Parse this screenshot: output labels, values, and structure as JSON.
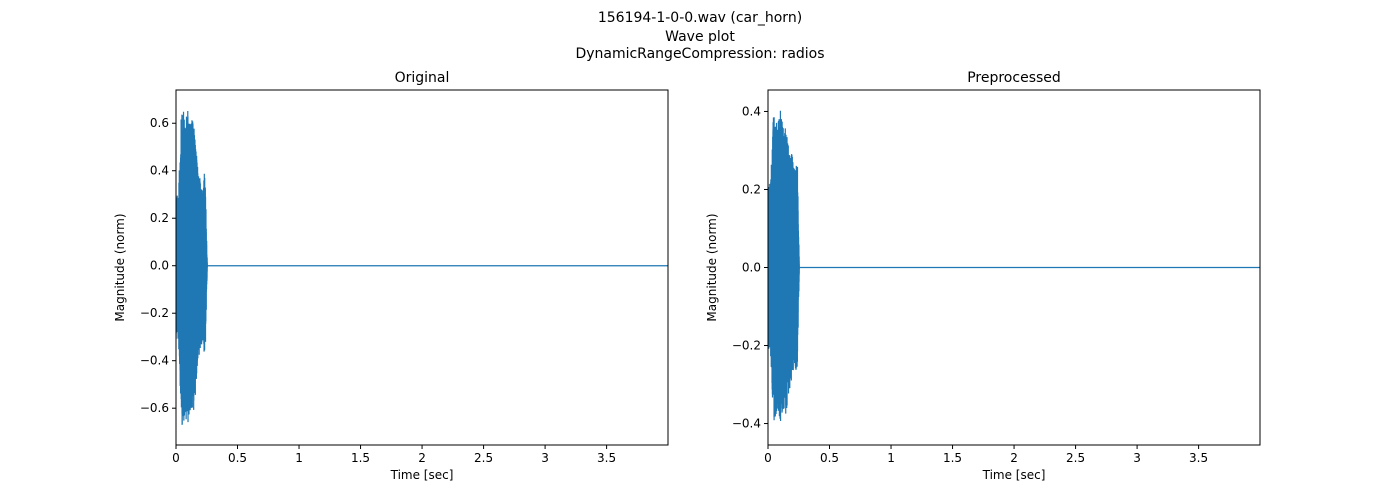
{
  "figure": {
    "suptitle_lines": [
      "156194-1-0-0.wav (car_horn)",
      "Wave plot",
      "DynamicRangeCompression: radios"
    ]
  },
  "colors": {
    "series": "#1f77b4",
    "axes": "#000000",
    "background": "#ffffff"
  },
  "chart_data": [
    {
      "type": "line",
      "title": "Original",
      "xlabel": "Time [sec]",
      "ylabel": "Magnitude (norm)",
      "xlim": [
        0,
        3.999
      ],
      "ylim": [
        -0.755,
        0.74
      ],
      "xticks": [
        0,
        0.5,
        1,
        1.5,
        2,
        2.5,
        3,
        3.5
      ],
      "xtick_labels": [
        "0",
        "0.5",
        "1",
        "1.5",
        "2",
        "2.5",
        "3",
        "3.5"
      ],
      "yticks": [
        -0.6,
        -0.4,
        -0.2,
        0.0,
        0.2,
        0.4,
        0.6
      ],
      "ytick_labels": [
        "−0.6",
        "−0.4",
        "−0.2",
        "0.0",
        "0.2",
        "0.4",
        "0.6"
      ],
      "grid": false,
      "signal": {
        "burst_start_sec": 0.0,
        "burst_end_sec": 0.255,
        "envelope_points": [
          [
            0.0,
            0.31
          ],
          [
            0.01,
            0.3
          ],
          [
            0.02,
            0.33
          ],
          [
            0.03,
            0.44
          ],
          [
            0.04,
            0.62
          ],
          [
            0.05,
            0.68
          ],
          [
            0.06,
            0.66
          ],
          [
            0.07,
            0.65
          ],
          [
            0.08,
            0.66
          ],
          [
            0.09,
            0.62
          ],
          [
            0.1,
            0.68
          ],
          [
            0.11,
            0.65
          ],
          [
            0.12,
            0.6
          ],
          [
            0.13,
            0.63
          ],
          [
            0.14,
            0.62
          ],
          [
            0.15,
            0.61
          ],
          [
            0.16,
            0.52
          ],
          [
            0.17,
            0.45
          ],
          [
            0.18,
            0.4
          ],
          [
            0.19,
            0.38
          ],
          [
            0.2,
            0.37
          ],
          [
            0.21,
            0.34
          ],
          [
            0.22,
            0.34
          ],
          [
            0.23,
            0.4
          ],
          [
            0.24,
            0.33
          ],
          [
            0.255,
            0.0
          ],
          [
            3.999,
            0.0
          ]
        ]
      }
    },
    {
      "type": "line",
      "title": "Preprocessed",
      "xlabel": "Time [sec]",
      "ylabel": "Magnitude (norm)",
      "xlim": [
        0,
        3.999
      ],
      "ylim": [
        -0.455,
        0.455
      ],
      "xticks": [
        0,
        0.5,
        1,
        1.5,
        2,
        2.5,
        3,
        3.5
      ],
      "xtick_labels": [
        "0",
        "0.5",
        "1",
        "1.5",
        "2",
        "2.5",
        "3",
        "3.5"
      ],
      "yticks": [
        -0.4,
        -0.2,
        0.0,
        0.2,
        0.4
      ],
      "ytick_labels": [
        "−0.4",
        "−0.2",
        "0.0",
        "0.2",
        "0.4"
      ],
      "grid": false,
      "signal": {
        "burst_start_sec": 0.0,
        "burst_end_sec": 0.255,
        "envelope_points": [
          [
            0.0,
            0.22
          ],
          [
            0.01,
            0.21
          ],
          [
            0.02,
            0.23
          ],
          [
            0.03,
            0.29
          ],
          [
            0.04,
            0.39
          ],
          [
            0.05,
            0.4
          ],
          [
            0.06,
            0.39
          ],
          [
            0.07,
            0.38
          ],
          [
            0.08,
            0.37
          ],
          [
            0.09,
            0.4
          ],
          [
            0.1,
            0.42
          ],
          [
            0.11,
            0.38
          ],
          [
            0.12,
            0.37
          ],
          [
            0.13,
            0.36
          ],
          [
            0.14,
            0.38
          ],
          [
            0.15,
            0.37
          ],
          [
            0.16,
            0.34
          ],
          [
            0.17,
            0.32
          ],
          [
            0.18,
            0.31
          ],
          [
            0.19,
            0.3
          ],
          [
            0.2,
            0.28
          ],
          [
            0.21,
            0.26
          ],
          [
            0.22,
            0.26
          ],
          [
            0.23,
            0.27
          ],
          [
            0.24,
            0.26
          ],
          [
            0.255,
            0.0
          ],
          [
            3.999,
            0.0
          ]
        ]
      }
    }
  ]
}
